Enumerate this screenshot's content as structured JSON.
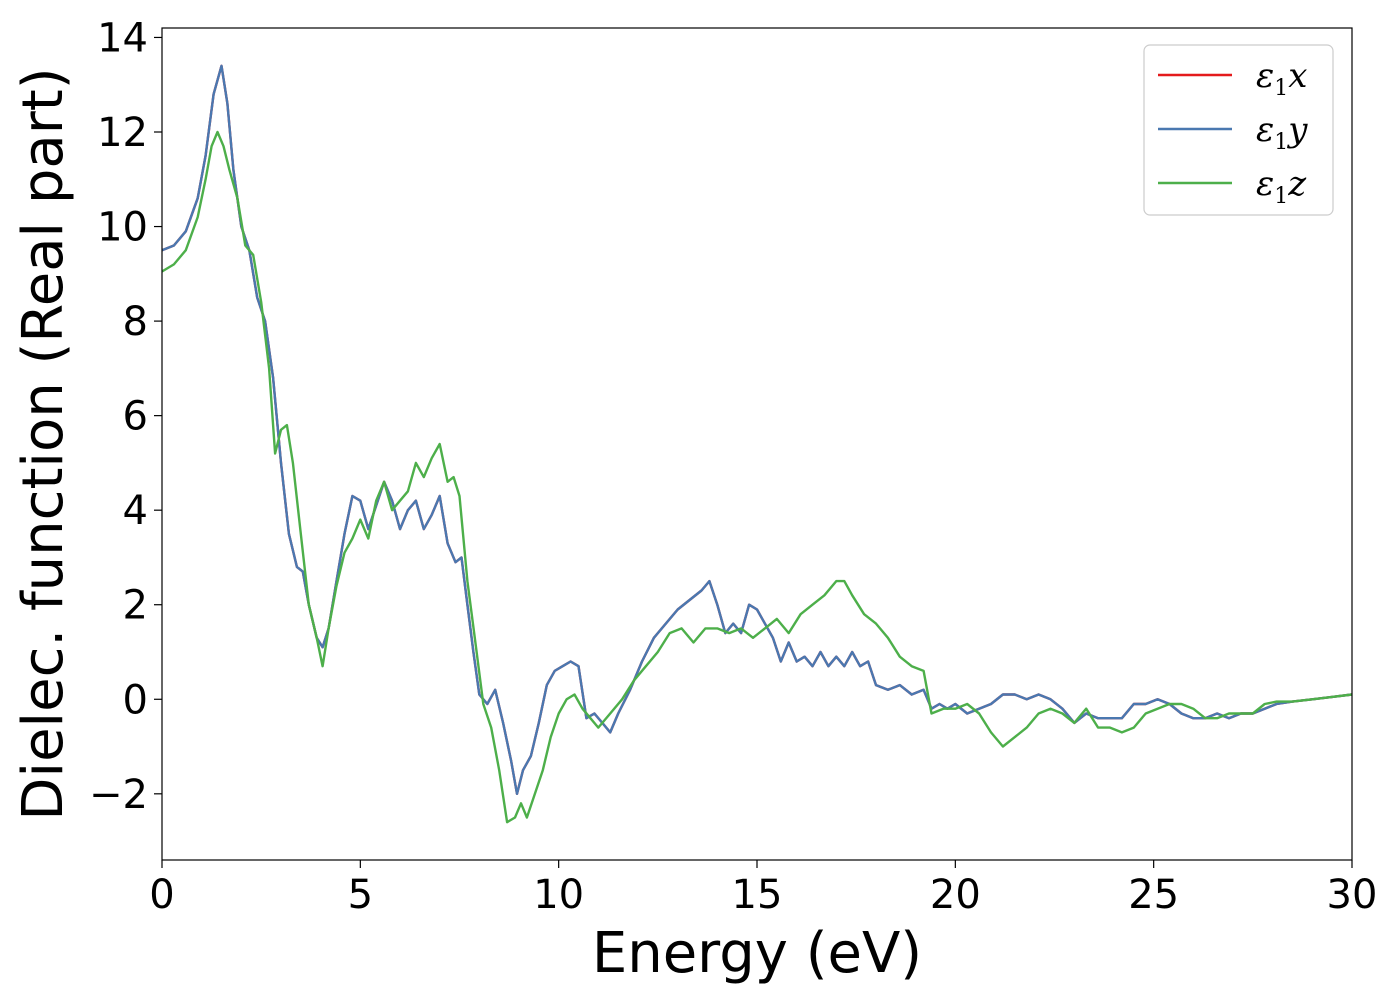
{
  "chart_data": {
    "type": "line",
    "title": "",
    "xlabel": "Energy (eV)",
    "ylabel": "Dielec. function (Real part)",
    "xlim": [
      0,
      30
    ],
    "ylim": [
      -3.4,
      14.2
    ],
    "xticks": [
      0,
      5,
      10,
      15,
      20,
      25,
      30
    ],
    "xtick_labels": [
      "0",
      "5",
      "10",
      "15",
      "20",
      "25",
      "30"
    ],
    "yticks": [
      -2,
      0,
      2,
      4,
      6,
      8,
      10,
      12,
      14
    ],
    "ytick_labels": [
      "−2",
      "0",
      "2",
      "4",
      "6",
      "8",
      "10",
      "12",
      "14"
    ],
    "grid": false,
    "legend_position": "top-right",
    "series": [
      {
        "name": "ε₁x",
        "legend_base": "ε",
        "legend_sub": "1",
        "legend_suffix": "x",
        "color": "#e41a1c",
        "x": [
          0,
          0.3,
          0.6,
          0.9,
          1.1,
          1.3,
          1.5,
          1.65,
          1.8,
          2.0,
          2.2,
          2.4,
          2.6,
          2.8,
          3.0,
          3.2,
          3.4,
          3.55,
          3.7,
          3.9,
          4.05,
          4.2,
          4.4,
          4.6,
          4.8,
          5.0,
          5.2,
          5.4,
          5.6,
          5.8,
          6.0,
          6.2,
          6.4,
          6.6,
          6.8,
          7.0,
          7.2,
          7.4,
          7.55,
          7.7,
          7.85,
          8.0,
          8.2,
          8.4,
          8.6,
          8.8,
          8.95,
          9.1,
          9.3,
          9.5,
          9.7,
          9.9,
          10.1,
          10.3,
          10.5,
          10.7,
          10.9,
          11.1,
          11.3,
          11.5,
          11.8,
          12.1,
          12.4,
          12.7,
          13.0,
          13.3,
          13.6,
          13.8,
          14.0,
          14.2,
          14.4,
          14.6,
          14.8,
          15.0,
          15.2,
          15.4,
          15.6,
          15.8,
          16.0,
          16.2,
          16.4,
          16.6,
          16.8,
          17.0,
          17.2,
          17.4,
          17.6,
          17.8,
          18.0,
          18.3,
          18.6,
          18.9,
          19.2,
          19.4,
          19.6,
          19.8,
          20.0,
          20.3,
          20.6,
          20.9,
          21.2,
          21.5,
          21.8,
          22.1,
          22.4,
          22.7,
          23.0,
          23.3,
          23.6,
          23.9,
          24.2,
          24.5,
          24.8,
          25.1,
          25.4,
          25.7,
          26.0,
          26.3,
          26.6,
          26.9,
          27.2,
          27.5,
          27.8,
          28.1,
          28.5,
          29.0,
          29.5,
          30.0
        ],
        "values": [
          9.5,
          9.6,
          9.9,
          10.6,
          11.5,
          12.8,
          13.4,
          12.6,
          11.2,
          10.0,
          9.5,
          8.5,
          8.0,
          6.8,
          5.0,
          3.5,
          2.8,
          2.7,
          2.0,
          1.3,
          1.1,
          1.5,
          2.5,
          3.5,
          4.3,
          4.2,
          3.6,
          4.1,
          4.6,
          4.2,
          3.6,
          4.0,
          4.2,
          3.6,
          3.9,
          4.3,
          3.3,
          2.9,
          3.0,
          2.0,
          1.0,
          0.1,
          -0.1,
          0.2,
          -0.5,
          -1.3,
          -2.0,
          -1.5,
          -1.2,
          -0.5,
          0.3,
          0.6,
          0.7,
          0.8,
          0.7,
          -0.4,
          -0.3,
          -0.5,
          -0.7,
          -0.3,
          0.2,
          0.8,
          1.3,
          1.6,
          1.9,
          2.1,
          2.3,
          2.5,
          2.0,
          1.4,
          1.6,
          1.4,
          2.0,
          1.9,
          1.6,
          1.3,
          0.8,
          1.2,
          0.8,
          0.9,
          0.7,
          1.0,
          0.7,
          0.9,
          0.7,
          1.0,
          0.7,
          0.8,
          0.3,
          0.2,
          0.3,
          0.1,
          0.2,
          -0.2,
          -0.1,
          -0.2,
          -0.1,
          -0.3,
          -0.2,
          -0.1,
          0.1,
          0.1,
          0.0,
          0.1,
          0.0,
          -0.2,
          -0.5,
          -0.3,
          -0.4,
          -0.4,
          -0.4,
          -0.1,
          -0.1,
          0.0,
          -0.1,
          -0.3,
          -0.4,
          -0.4,
          -0.3,
          -0.4,
          -0.3,
          -0.3,
          -0.2,
          -0.1,
          -0.05,
          0.0,
          0.05,
          0.1
        ]
      },
      {
        "name": "ε₁y",
        "legend_base": "ε",
        "legend_sub": "1",
        "legend_suffix": "y",
        "color": "#4a78b0",
        "x": [
          0,
          0.3,
          0.6,
          0.9,
          1.1,
          1.3,
          1.5,
          1.65,
          1.8,
          2.0,
          2.2,
          2.4,
          2.6,
          2.8,
          3.0,
          3.2,
          3.4,
          3.55,
          3.7,
          3.9,
          4.05,
          4.2,
          4.4,
          4.6,
          4.8,
          5.0,
          5.2,
          5.4,
          5.6,
          5.8,
          6.0,
          6.2,
          6.4,
          6.6,
          6.8,
          7.0,
          7.2,
          7.4,
          7.55,
          7.7,
          7.85,
          8.0,
          8.2,
          8.4,
          8.6,
          8.8,
          8.95,
          9.1,
          9.3,
          9.5,
          9.7,
          9.9,
          10.1,
          10.3,
          10.5,
          10.7,
          10.9,
          11.1,
          11.3,
          11.5,
          11.8,
          12.1,
          12.4,
          12.7,
          13.0,
          13.3,
          13.6,
          13.8,
          14.0,
          14.2,
          14.4,
          14.6,
          14.8,
          15.0,
          15.2,
          15.4,
          15.6,
          15.8,
          16.0,
          16.2,
          16.4,
          16.6,
          16.8,
          17.0,
          17.2,
          17.4,
          17.6,
          17.8,
          18.0,
          18.3,
          18.6,
          18.9,
          19.2,
          19.4,
          19.6,
          19.8,
          20.0,
          20.3,
          20.6,
          20.9,
          21.2,
          21.5,
          21.8,
          22.1,
          22.4,
          22.7,
          23.0,
          23.3,
          23.6,
          23.9,
          24.2,
          24.5,
          24.8,
          25.1,
          25.4,
          25.7,
          26.0,
          26.3,
          26.6,
          26.9,
          27.2,
          27.5,
          27.8,
          28.1,
          28.5,
          29.0,
          29.5,
          30.0
        ],
        "values": [
          9.5,
          9.6,
          9.9,
          10.6,
          11.5,
          12.8,
          13.4,
          12.6,
          11.2,
          10.0,
          9.5,
          8.5,
          8.0,
          6.8,
          5.0,
          3.5,
          2.8,
          2.7,
          2.0,
          1.3,
          1.1,
          1.5,
          2.5,
          3.5,
          4.3,
          4.2,
          3.6,
          4.1,
          4.6,
          4.2,
          3.6,
          4.0,
          4.2,
          3.6,
          3.9,
          4.3,
          3.3,
          2.9,
          3.0,
          2.0,
          1.0,
          0.1,
          -0.1,
          0.2,
          -0.5,
          -1.3,
          -2.0,
          -1.5,
          -1.2,
          -0.5,
          0.3,
          0.6,
          0.7,
          0.8,
          0.7,
          -0.4,
          -0.3,
          -0.5,
          -0.7,
          -0.3,
          0.2,
          0.8,
          1.3,
          1.6,
          1.9,
          2.1,
          2.3,
          2.5,
          2.0,
          1.4,
          1.6,
          1.4,
          2.0,
          1.9,
          1.6,
          1.3,
          0.8,
          1.2,
          0.8,
          0.9,
          0.7,
          1.0,
          0.7,
          0.9,
          0.7,
          1.0,
          0.7,
          0.8,
          0.3,
          0.2,
          0.3,
          0.1,
          0.2,
          -0.2,
          -0.1,
          -0.2,
          -0.1,
          -0.3,
          -0.2,
          -0.1,
          0.1,
          0.1,
          0.0,
          0.1,
          0.0,
          -0.2,
          -0.5,
          -0.3,
          -0.4,
          -0.4,
          -0.4,
          -0.1,
          -0.1,
          0.0,
          -0.1,
          -0.3,
          -0.4,
          -0.4,
          -0.3,
          -0.4,
          -0.3,
          -0.3,
          -0.2,
          -0.1,
          -0.05,
          0.0,
          0.05,
          0.1
        ]
      },
      {
        "name": "ε₁z",
        "legend_base": "ε",
        "legend_sub": "1",
        "legend_suffix": "z",
        "color": "#4daf4a",
        "x": [
          0,
          0.3,
          0.6,
          0.9,
          1.1,
          1.25,
          1.4,
          1.55,
          1.7,
          1.9,
          2.1,
          2.3,
          2.5,
          2.7,
          2.85,
          3.0,
          3.15,
          3.3,
          3.5,
          3.7,
          3.9,
          4.05,
          4.2,
          4.4,
          4.6,
          4.8,
          5.0,
          5.2,
          5.4,
          5.6,
          5.8,
          6.0,
          6.2,
          6.4,
          6.6,
          6.8,
          7.0,
          7.2,
          7.35,
          7.5,
          7.7,
          7.9,
          8.1,
          8.3,
          8.5,
          8.7,
          8.9,
          9.05,
          9.2,
          9.4,
          9.6,
          9.8,
          10.0,
          10.2,
          10.4,
          10.6,
          10.8,
          11.0,
          11.3,
          11.6,
          11.9,
          12.2,
          12.5,
          12.8,
          13.1,
          13.4,
          13.7,
          14.0,
          14.3,
          14.6,
          14.9,
          15.2,
          15.5,
          15.8,
          16.1,
          16.4,
          16.7,
          17.0,
          17.2,
          17.4,
          17.7,
          18.0,
          18.3,
          18.6,
          18.9,
          19.2,
          19.4,
          19.7,
          20.0,
          20.3,
          20.6,
          20.9,
          21.2,
          21.5,
          21.8,
          22.1,
          22.4,
          22.7,
          23.0,
          23.3,
          23.6,
          23.9,
          24.2,
          24.5,
          24.8,
          25.1,
          25.4,
          25.7,
          26.0,
          26.3,
          26.6,
          26.9,
          27.2,
          27.5,
          27.8,
          28.1,
          28.5,
          29.0,
          29.5,
          30.0
        ],
        "values": [
          9.05,
          9.2,
          9.5,
          10.2,
          11.0,
          11.7,
          12.0,
          11.7,
          11.2,
          10.6,
          9.6,
          9.4,
          8.4,
          7.0,
          5.2,
          5.7,
          5.8,
          5.0,
          3.5,
          2.0,
          1.3,
          0.7,
          1.5,
          2.4,
          3.1,
          3.4,
          3.8,
          3.4,
          4.2,
          4.6,
          4.0,
          4.2,
          4.4,
          5.0,
          4.7,
          5.1,
          5.4,
          4.6,
          4.7,
          4.3,
          2.5,
          1.2,
          -0.1,
          -0.6,
          -1.5,
          -2.6,
          -2.5,
          -2.2,
          -2.5,
          -2.0,
          -1.5,
          -0.8,
          -0.3,
          0.0,
          0.1,
          -0.2,
          -0.4,
          -0.6,
          -0.3,
          0.0,
          0.4,
          0.7,
          1.0,
          1.4,
          1.5,
          1.2,
          1.5,
          1.5,
          1.4,
          1.5,
          1.3,
          1.5,
          1.7,
          1.4,
          1.8,
          2.0,
          2.2,
          2.5,
          2.5,
          2.2,
          1.8,
          1.6,
          1.3,
          0.9,
          0.7,
          0.6,
          -0.3,
          -0.2,
          -0.2,
          -0.1,
          -0.3,
          -0.7,
          -1.0,
          -0.8,
          -0.6,
          -0.3,
          -0.2,
          -0.3,
          -0.5,
          -0.2,
          -0.6,
          -0.6,
          -0.7,
          -0.6,
          -0.3,
          -0.2,
          -0.1,
          -0.1,
          -0.2,
          -0.4,
          -0.4,
          -0.3,
          -0.3,
          -0.3,
          -0.1,
          -0.05,
          -0.05,
          0.0,
          0.05,
          0.1
        ]
      }
    ]
  }
}
